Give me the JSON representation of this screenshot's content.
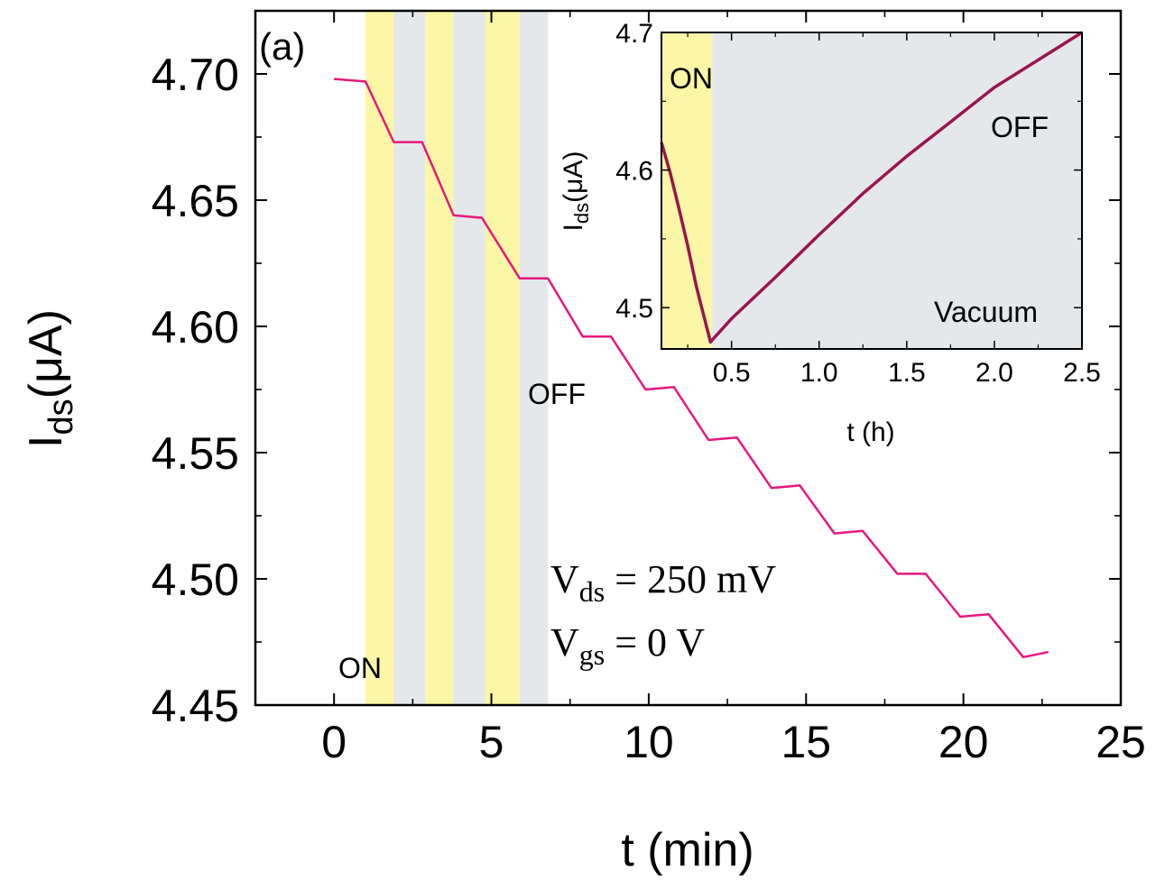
{
  "main_chart": {
    "panel_label": "(a)",
    "xlabel": "t (min)",
    "ylabel_main": "I",
    "ylabel_sub": "ds",
    "ylabel_unit": "(μA)",
    "annotations": {
      "on": "ON",
      "off": "OFF"
    },
    "conditions": {
      "vds": {
        "symbol": "V",
        "sub": "ds",
        "rest": " = 250 mV"
      },
      "vgs": {
        "symbol": "V",
        "sub": "gs",
        "rest": " = 0 V"
      }
    },
    "line_color": "#e8177e",
    "on_band_color": "#fbf7a6",
    "off_band_color": "#e4e8eb"
  },
  "inset_chart": {
    "xlabel": "t (h)",
    "ylabel_main": "I",
    "ylabel_sub": "ds",
    "ylabel_unit": "(μA)",
    "annotations": {
      "on": "ON",
      "off": "OFF",
      "vacuum": "Vacuum"
    },
    "line_color": "#9b1450",
    "on_band_color": "#fbf7a6",
    "off_band_color": "#e4e8eb"
  },
  "chart_data": [
    {
      "type": "line",
      "xlabel": "t (min)",
      "ylabel": "Ids(μA)",
      "xlim": [
        -2.5,
        25
      ],
      "ylim": [
        4.45,
        4.725
      ],
      "xticks": [
        "0",
        "5",
        "10",
        "15",
        "20",
        "25"
      ],
      "yticks": [
        "4.45",
        "4.50",
        "4.55",
        "4.60",
        "4.65",
        "4.70"
      ],
      "on_intervals": [
        [
          1.0,
          1.9
        ],
        [
          2.9,
          3.8
        ],
        [
          4.8,
          5.9
        ]
      ],
      "off_intervals": [
        [
          1.9,
          2.9
        ],
        [
          3.8,
          4.8
        ],
        [
          5.9,
          6.8
        ]
      ],
      "series": [
        {
          "x": [
            0,
            1.0,
            1.9,
            2.8,
            3.8,
            4.7,
            5.9,
            6.8,
            7.9,
            8.8,
            9.9,
            10.8,
            11.9,
            12.8,
            13.9,
            14.8,
            15.9,
            16.8,
            17.9,
            18.8,
            19.9,
            20.8,
            21.9,
            22.7
          ],
          "y": [
            4.698,
            4.697,
            4.673,
            4.673,
            4.644,
            4.643,
            4.619,
            4.619,
            4.596,
            4.596,
            4.575,
            4.576,
            4.555,
            4.556,
            4.536,
            4.537,
            4.518,
            4.519,
            4.502,
            4.502,
            4.485,
            4.486,
            4.469,
            4.471
          ]
        }
      ]
    },
    {
      "type": "line",
      "xlabel": "t (h)",
      "ylabel": "Ids(μA)",
      "xlim": [
        0.1,
        2.5
      ],
      "ylim": [
        4.47,
        4.7
      ],
      "xticks": [
        "0.5",
        "1.0",
        "1.5",
        "2.0",
        "2.5"
      ],
      "yticks": [
        "4.5",
        "4.6",
        "4.7"
      ],
      "on_intervals": [
        [
          0.1,
          0.39
        ]
      ],
      "off_intervals": [
        [
          0.39,
          2.5
        ]
      ],
      "series": [
        {
          "x": [
            0.1,
            0.15,
            0.2,
            0.25,
            0.3,
            0.35,
            0.38,
            0.4,
            0.5,
            0.75,
            1.0,
            1.25,
            1.5,
            1.75,
            2.0,
            2.25,
            2.5
          ],
          "y": [
            4.62,
            4.598,
            4.572,
            4.545,
            4.515,
            4.49,
            4.475,
            4.478,
            4.492,
            4.522,
            4.553,
            4.583,
            4.61,
            4.635,
            4.66,
            4.68,
            4.7
          ]
        }
      ]
    }
  ]
}
